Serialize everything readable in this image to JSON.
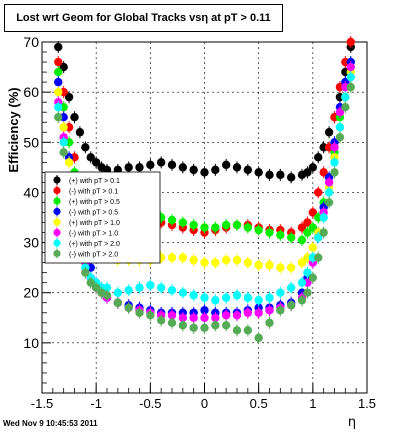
{
  "chart_data": {
    "type": "scatter",
    "title": "Lost wrt Geom for Global Tracks vsη at pT > 0.11",
    "xlabel": "η",
    "ylabel": "Efficiency (%)",
    "xlim": [
      -1.5,
      1.5
    ],
    "ylim": [
      0,
      70
    ],
    "xticks": [
      "-1.5",
      "-1",
      "-0.5",
      "0",
      "0.5",
      "1",
      "1.5"
    ],
    "yticks": [
      "10",
      "20",
      "30",
      "40",
      "50",
      "60",
      "70"
    ],
    "grid": true,
    "legend_position": "left-middle",
    "series": [
      {
        "name": "(+) with pT > 0.1",
        "color": "#000000",
        "x": [
          -1.35,
          -1.3,
          -1.25,
          -1.2,
          -1.15,
          -1.1,
          -1.05,
          -1.0,
          -0.95,
          -0.9,
          -0.8,
          -0.7,
          -0.6,
          -0.5,
          -0.4,
          -0.3,
          -0.2,
          -0.1,
          0.0,
          0.1,
          0.2,
          0.3,
          0.4,
          0.5,
          0.6,
          0.7,
          0.8,
          0.9,
          0.95,
          1.0,
          1.05,
          1.1,
          1.15,
          1.2,
          1.25,
          1.3,
          1.35
        ],
        "y": [
          69,
          65,
          59,
          55,
          52,
          49,
          47,
          46,
          45,
          44.5,
          44.5,
          45,
          45,
          45.5,
          46,
          45.5,
          45,
          44.5,
          44,
          44.5,
          45.5,
          45,
          44.5,
          44,
          43.5,
          43.5,
          43,
          43.5,
          44,
          45,
          47,
          49,
          52,
          55,
          59,
          64,
          69
        ]
      },
      {
        "name": "(-) with pT > 0.1",
        "color": "#ff0000",
        "x": [
          -1.35,
          -1.3,
          -1.25,
          -1.2,
          -1.15,
          -1.1,
          -1.05,
          -1.0,
          -0.95,
          -0.9,
          -0.8,
          -0.7,
          -0.6,
          -0.5,
          -0.4,
          -0.3,
          -0.2,
          -0.1,
          0.0,
          0.1,
          0.2,
          0.3,
          0.4,
          0.5,
          0.6,
          0.7,
          0.8,
          0.9,
          0.95,
          1.0,
          1.05,
          1.1,
          1.15,
          1.2,
          1.25,
          1.3,
          1.35
        ],
        "y": [
          66,
          60,
          53,
          47,
          42,
          38,
          35,
          33.5,
          33,
          32.5,
          32.5,
          33,
          33.5,
          33.5,
          34,
          33.5,
          33,
          32.5,
          32,
          32.5,
          33,
          33.5,
          33.5,
          33,
          32.5,
          32.5,
          32,
          33,
          34,
          36,
          40,
          44,
          49,
          55,
          61,
          66,
          70
        ]
      },
      {
        "name": "(+) with pT > 0.5",
        "color": "#00ee00",
        "x": [
          -1.35,
          -1.3,
          -1.25,
          -1.2,
          -1.15,
          -1.1,
          -1.05,
          -1.0,
          -0.95,
          -0.9,
          -0.8,
          -0.7,
          -0.6,
          -0.5,
          -0.4,
          -0.3,
          -0.2,
          -0.1,
          0.0,
          0.1,
          0.2,
          0.3,
          0.4,
          0.5,
          0.6,
          0.7,
          0.8,
          0.9,
          0.95,
          1.0,
          1.05,
          1.1,
          1.15,
          1.2,
          1.25,
          1.3,
          1.35
        ],
        "y": [
          64,
          57,
          50,
          44,
          40,
          37,
          36,
          35,
          35,
          34.5,
          34.5,
          35,
          35,
          35,
          35,
          34.5,
          34,
          33.5,
          33,
          33,
          33.5,
          33.5,
          33,
          32.5,
          32,
          31.5,
          31,
          30.5,
          32,
          33,
          35,
          38,
          42,
          48,
          55,
          61,
          66
        ]
      },
      {
        "name": "(-) with pT > 0.5",
        "color": "#0000ff",
        "x": [
          -1.35,
          -1.3,
          -1.25,
          -1.2,
          -1.15,
          -1.1,
          -1.05,
          -1.0,
          -0.95,
          -0.9,
          -0.8,
          -0.7,
          -0.6,
          -0.5,
          -0.4,
          -0.3,
          -0.2,
          -0.1,
          0.0,
          0.1,
          0.2,
          0.3,
          0.4,
          0.5,
          0.6,
          0.7,
          0.8,
          0.9,
          0.95,
          1.0,
          1.05,
          1.1,
          1.15,
          1.2,
          1.25,
          1.3,
          1.35
        ],
        "y": [
          62,
          55,
          47,
          40,
          34,
          29,
          25,
          22,
          20,
          19,
          18,
          17.5,
          17,
          16.5,
          16,
          16,
          16,
          16,
          16.5,
          16,
          16,
          16,
          16.5,
          17,
          17,
          17.5,
          18,
          20,
          23,
          27,
          32,
          37,
          43,
          50,
          57,
          62,
          66
        ]
      },
      {
        "name": "(+) with pT > 1.0",
        "color": "#ffff00",
        "x": [
          -1.35,
          -1.3,
          -1.25,
          -1.2,
          -1.15,
          -1.1,
          -1.05,
          -1.0,
          -0.95,
          -0.9,
          -0.8,
          -0.7,
          -0.6,
          -0.5,
          -0.4,
          -0.3,
          -0.2,
          -0.1,
          0.0,
          0.1,
          0.2,
          0.3,
          0.4,
          0.5,
          0.6,
          0.7,
          0.8,
          0.9,
          0.95,
          1.0,
          1.05,
          1.1,
          1.15,
          1.2,
          1.25,
          1.3,
          1.35
        ],
        "y": [
          60,
          53,
          46,
          40,
          35,
          31,
          29,
          28,
          27,
          27,
          26.5,
          26.5,
          26.5,
          26.5,
          27,
          27,
          27,
          26.5,
          26,
          26,
          26.5,
          26.5,
          26,
          25.5,
          25.5,
          25,
          25,
          26,
          27,
          29,
          32,
          36,
          41,
          47,
          53,
          59,
          64
        ]
      },
      {
        "name": "(-) with pT > 1.0",
        "color": "#ff00ff",
        "x": [
          -1.35,
          -1.3,
          -1.25,
          -1.2,
          -1.15,
          -1.1,
          -1.05,
          -1.0,
          -0.95,
          -0.9,
          -0.8,
          -0.7,
          -0.6,
          -0.5,
          -0.4,
          -0.3,
          -0.2,
          -0.1,
          0.0,
          0.1,
          0.2,
          0.3,
          0.4,
          0.5,
          0.6,
          0.7,
          0.8,
          0.9,
          0.95,
          1.0,
          1.05,
          1.1,
          1.15,
          1.2,
          1.25,
          1.3,
          1.35
        ],
        "y": [
          58,
          51,
          43,
          36,
          30,
          26,
          23,
          21,
          20,
          19,
          18,
          17,
          16.5,
          16,
          15.5,
          15.5,
          15,
          15,
          15,
          15,
          15.5,
          15.5,
          16,
          16,
          16.5,
          17,
          17.5,
          19,
          22,
          26,
          31,
          36,
          42,
          49,
          56,
          61,
          65
        ]
      },
      {
        "name": "(+) with pT > 2.0",
        "color": "#00ffff",
        "x": [
          -1.35,
          -1.3,
          -1.25,
          -1.2,
          -1.15,
          -1.1,
          -1.05,
          -1.0,
          -0.95,
          -0.9,
          -0.8,
          -0.7,
          -0.6,
          -0.5,
          -0.4,
          -0.3,
          -0.2,
          -0.1,
          0.0,
          0.1,
          0.2,
          0.3,
          0.4,
          0.5,
          0.6,
          0.7,
          0.8,
          0.9,
          0.95,
          1.0,
          1.05,
          1.1,
          1.15,
          1.2,
          1.25,
          1.3,
          1.35
        ],
        "y": [
          57,
          50,
          42,
          35,
          29,
          25,
          23,
          22,
          21,
          21,
          20,
          20.5,
          21,
          21.5,
          21,
          20.5,
          20,
          19.5,
          19,
          18.5,
          19,
          19.5,
          19,
          18.5,
          19,
          20,
          21,
          22,
          24,
          27,
          31,
          35,
          40,
          46,
          53,
          59,
          63
        ]
      },
      {
        "name": "(-) with pT > 2.0",
        "color": "#55aa55",
        "x": [
          -1.35,
          -1.3,
          -1.25,
          -1.2,
          -1.15,
          -1.1,
          -1.05,
          -1.0,
          -0.95,
          -0.9,
          -0.8,
          -0.7,
          -0.6,
          -0.5,
          -0.4,
          -0.3,
          -0.2,
          -0.1,
          0.0,
          0.1,
          0.2,
          0.3,
          0.4,
          0.5,
          0.6,
          0.7,
          0.8,
          0.9,
          0.95,
          1.0,
          1.05,
          1.1,
          1.15,
          1.2,
          1.25,
          1.3,
          1.35
        ],
        "y": [
          55,
          48,
          40,
          33,
          28,
          24,
          22,
          21,
          20,
          19.5,
          18,
          17,
          16,
          15.5,
          14.5,
          14,
          13.5,
          13,
          13,
          13.5,
          13.5,
          12.5,
          12.5,
          11,
          14,
          16.5,
          17.5,
          18.5,
          20,
          23,
          27,
          32,
          38,
          44,
          51,
          57,
          61
        ]
      }
    ]
  },
  "footer_text": "Wed Nov  9 10:45:53 2011"
}
